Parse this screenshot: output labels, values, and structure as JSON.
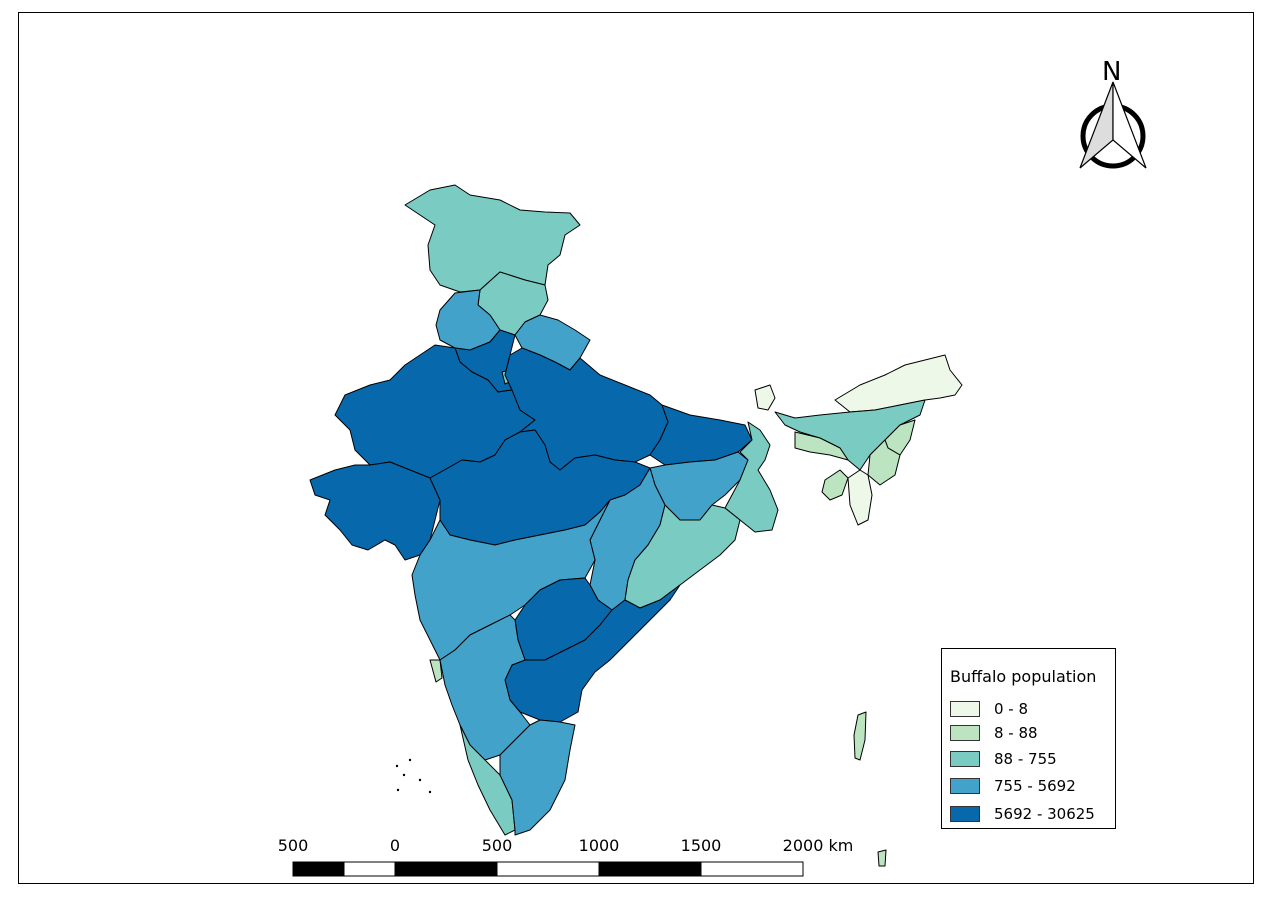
{
  "legend": {
    "title": "Buffalo  population",
    "classes": [
      {
        "label": "0 - 8",
        "color": "#eef8e9"
      },
      {
        "label": "8 - 88",
        "color": "#bce4c1"
      },
      {
        "label": "88 - 755",
        "color": "#7acbc1"
      },
      {
        "label": "755 - 5692",
        "color": "#43a2ca"
      },
      {
        "label": "5692 - 30625",
        "color": "#0868ac"
      }
    ]
  },
  "scale_bar": {
    "labels": [
      "500",
      "0",
      "500",
      "1000",
      "1500",
      "2000 km"
    ]
  },
  "north_arrow": {
    "letter": "N",
    "icon": "north-arrow-icon"
  }
}
